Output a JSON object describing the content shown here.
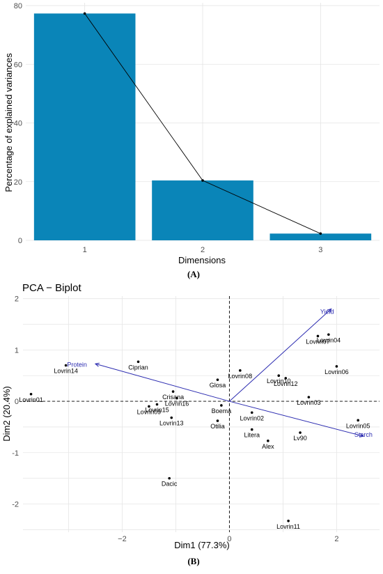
{
  "labels": {
    "panel_a": "(A)",
    "panel_b": "(B)"
  },
  "chart_data": [
    {
      "type": "bar",
      "xlabel": "Dimensions",
      "ylabel": "Percentage of explained variances",
      "categories": [
        "1",
        "2",
        "3"
      ],
      "values": [
        77.3,
        20.4,
        2.3
      ],
      "line_overlay": true,
      "ylim": [
        0,
        80
      ],
      "yticks": [
        0,
        20,
        40,
        60,
        80
      ],
      "grid": true,
      "bar_color": "#0a85b8"
    },
    {
      "type": "scatter",
      "title": "PCA − Biplot",
      "xlabel": "Dim1 (77.3%)",
      "ylabel": "Dim2 (20.4%)",
      "xlim": [
        -3.85,
        2.8
      ],
      "ylim": [
        -2.55,
        2.05
      ],
      "xticks": [
        -2,
        0,
        2
      ],
      "yticks": [
        -2,
        -1,
        0,
        1,
        2
      ],
      "grid": true,
      "points": [
        {
          "label": "Lovrin01",
          "x": -3.7,
          "y": 0.14
        },
        {
          "label": "Lovrin14",
          "x": -3.05,
          "y": 0.7
        },
        {
          "label": "Ciprian",
          "x": -1.7,
          "y": 0.77
        },
        {
          "label": "Crisana",
          "x": -1.05,
          "y": 0.19
        },
        {
          "label": "Lovrin16",
          "x": -0.98,
          "y": 0.06
        },
        {
          "label": "Lovrin15",
          "x": -1.35,
          "y": -0.06
        },
        {
          "label": "Lovrin09",
          "x": -1.5,
          "y": -0.1
        },
        {
          "label": "Lovrin13",
          "x": -1.08,
          "y": -0.32
        },
        {
          "label": "Dacic",
          "x": -1.12,
          "y": -1.5
        },
        {
          "label": "Glosa",
          "x": -0.22,
          "y": 0.42
        },
        {
          "label": "Boema",
          "x": -0.15,
          "y": -0.08
        },
        {
          "label": "Otilia",
          "x": -0.22,
          "y": -0.38
        },
        {
          "label": "Lovrin08",
          "x": 0.2,
          "y": 0.6
        },
        {
          "label": "Lovrin10",
          "x": 0.92,
          "y": 0.5
        },
        {
          "label": "Lovrin12",
          "x": 1.05,
          "y": 0.45
        },
        {
          "label": "Lovrin02",
          "x": 0.42,
          "y": -0.22
        },
        {
          "label": "Litera",
          "x": 0.42,
          "y": -0.55
        },
        {
          "label": "Alex",
          "x": 0.72,
          "y": -0.77
        },
        {
          "label": "Lv90",
          "x": 1.32,
          "y": -0.61
        },
        {
          "label": "Lovrin11",
          "x": 1.1,
          "y": -2.33
        },
        {
          "label": "Lovrin04",
          "x": 1.85,
          "y": 1.3
        },
        {
          "label": "Lovrin07",
          "x": 1.65,
          "y": 1.27
        },
        {
          "label": "Lovrin06",
          "x": 2.0,
          "y": 0.68
        },
        {
          "label": "Lovrin03",
          "x": 1.48,
          "y": 0.08
        },
        {
          "label": "Lovrin05",
          "x": 2.4,
          "y": -0.37
        }
      ],
      "variables": [
        {
          "label": "Yield",
          "x": 1.9,
          "y": 1.8
        },
        {
          "label": "Protein",
          "x": -2.5,
          "y": 0.73
        },
        {
          "label": "Starch",
          "x": 2.5,
          "y": -0.68
        }
      ],
      "vector_color": "#2b2bb0"
    }
  ]
}
